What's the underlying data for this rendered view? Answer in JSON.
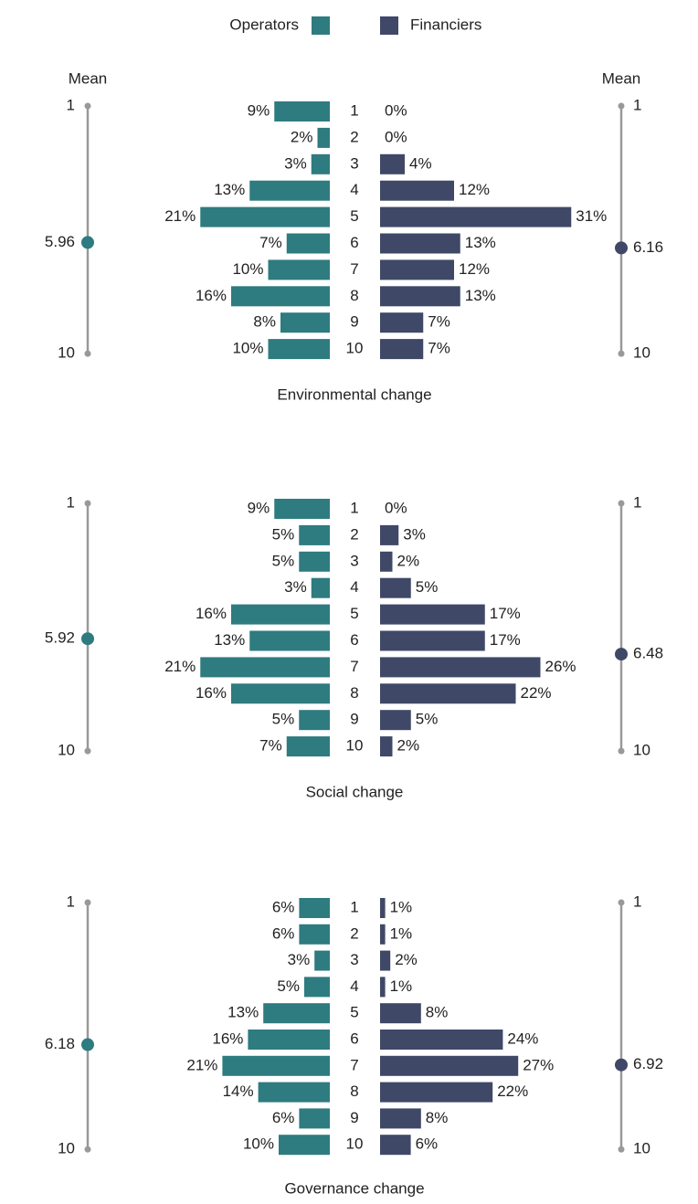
{
  "chart_data": [
    {
      "type": "bar",
      "mean_label": "Mean",
      "categories": [
        "1",
        "2",
        "3",
        "4",
        "5",
        "6",
        "7",
        "8",
        "9",
        "10"
      ],
      "series": [
        {
          "name": "Operators",
          "color": "#2e7b80",
          "values": [
            9,
            2,
            3,
            13,
            21,
            7,
            10,
            16,
            8,
            10
          ],
          "value_labels": [
            "9%",
            "2%",
            "3%",
            "13%",
            "21%",
            "7%",
            "10%",
            "16%",
            "8%",
            "10%"
          ],
          "mean": 5.96
        },
        {
          "name": "Financiers",
          "color": "#3f4867",
          "values": [
            0,
            0,
            4,
            12,
            31,
            13,
            12,
            13,
            7,
            7
          ],
          "value_labels": [
            "0%",
            "0%",
            "4%",
            "12%",
            "31%",
            "13%",
            "12%",
            "13%",
            "7%",
            "7%"
          ],
          "mean": 6.16
        }
      ],
      "mean_lim": [
        1,
        10
      ],
      "mean_ticks": [
        1,
        10
      ],
      "xlabel": "Environmental change"
    },
    {
      "type": "bar",
      "categories": [
        "1",
        "2",
        "3",
        "4",
        "5",
        "6",
        "7",
        "8",
        "9",
        "10"
      ],
      "series": [
        {
          "color": "#2e7b80",
          "values": [
            9,
            5,
            5,
            3,
            16,
            13,
            21,
            16,
            5,
            7
          ],
          "value_labels": [
            "9%",
            "5%",
            "5%",
            "3%",
            "16%",
            "13%",
            "21%",
            "16%",
            "5%",
            "7%"
          ],
          "mean": 5.92
        },
        {
          "color": "#3f4867",
          "values": [
            0,
            3,
            2,
            5,
            17,
            17,
            26,
            22,
            5,
            2
          ],
          "value_labels": [
            "0%",
            "3%",
            "2%",
            "5%",
            "17%",
            "17%",
            "26%",
            "22%",
            "5%",
            "2%"
          ],
          "mean": 6.48
        }
      ],
      "mean_lim": [
        1,
        10
      ],
      "mean_ticks": [
        1,
        10
      ],
      "xlabel": "Social change"
    },
    {
      "type": "bar",
      "categories": [
        "1",
        "2",
        "3",
        "4",
        "5",
        "6",
        "7",
        "8",
        "9",
        "10"
      ],
      "series": [
        {
          "color": "#2e7b80",
          "values": [
            6,
            6,
            3,
            5,
            13,
            16,
            21,
            14,
            6,
            10
          ],
          "value_labels": [
            "6%",
            "6%",
            "3%",
            "5%",
            "13%",
            "16%",
            "21%",
            "14%",
            "6%",
            "10%"
          ],
          "mean": 6.18
        },
        {
          "color": "#3f4867",
          "values": [
            1,
            1,
            2,
            1,
            8,
            24,
            27,
            22,
            8,
            6
          ],
          "value_labels": [
            "1%",
            "1%",
            "2%",
            "1%",
            "8%",
            "24%",
            "27%",
            "22%",
            "8%",
            "6%"
          ],
          "mean": 6.92
        }
      ],
      "mean_lim": [
        1,
        10
      ],
      "mean_ticks": [
        1,
        10
      ],
      "xlabel": "Governance change"
    }
  ]
}
